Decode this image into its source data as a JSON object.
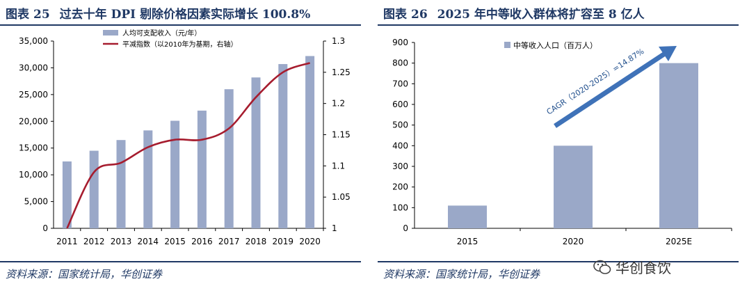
{
  "left": {
    "figure_label": "图表",
    "figure_number": "25",
    "title": "过去十年 DPI 剔除价格因素实际增长 100.8%",
    "source": "资料来源：国家统计局，华创证券"
  },
  "right": {
    "figure_label": "图表",
    "figure_number": "26",
    "title": "2025 年中等收入群体将扩容至 8 亿人",
    "source": "资料来源：国家统计局，华创证券",
    "watermark": "华创食饮"
  },
  "chart_data": [
    {
      "type": "bar+line",
      "categories": [
        "2011",
        "2012",
        "2013",
        "2014",
        "2015",
        "2016",
        "2017",
        "2018",
        "2019",
        "2020"
      ],
      "series": [
        {
          "name": "人均可支配收入（元/年）",
          "type": "bar",
          "axis": "left",
          "values": [
            12500,
            14500,
            16500,
            18300,
            20100,
            22000,
            26000,
            28200,
            30700,
            32200
          ]
        },
        {
          "name": "平减指数（以2010年为基期，右轴）",
          "type": "line",
          "axis": "right",
          "values": [
            1.0,
            1.09,
            1.105,
            1.13,
            1.142,
            1.142,
            1.16,
            1.21,
            1.25,
            1.265
          ]
        }
      ],
      "ylim": [
        0,
        35000
      ],
      "yticks": [
        "0",
        "5,000",
        "10,000",
        "15,000",
        "20,000",
        "25,000",
        "30,000",
        "35,000"
      ],
      "y2lim": [
        1,
        1.3
      ],
      "y2ticks": [
        "1",
        "1.05",
        "1.1",
        "1.15",
        "1.2",
        "1.25",
        "1.3"
      ],
      "legend": "top-center",
      "colors": {
        "bar": "#9aa8c8",
        "line": "#a61c2e"
      }
    },
    {
      "type": "bar",
      "categories": [
        "2015",
        "2020",
        "2025E"
      ],
      "series": [
        {
          "name": "中等收入人口（百万人）",
          "values": [
            110,
            400,
            800
          ]
        }
      ],
      "ylim": [
        0,
        900
      ],
      "yticks": [
        "0",
        "100",
        "200",
        "300",
        "400",
        "500",
        "600",
        "700",
        "800",
        "900"
      ],
      "annotation": "CAGR（2020-2025）=14.87%",
      "legend": "top-left",
      "colors": {
        "bar": "#9aa8c8",
        "arrow": "#3f72b8"
      }
    }
  ]
}
